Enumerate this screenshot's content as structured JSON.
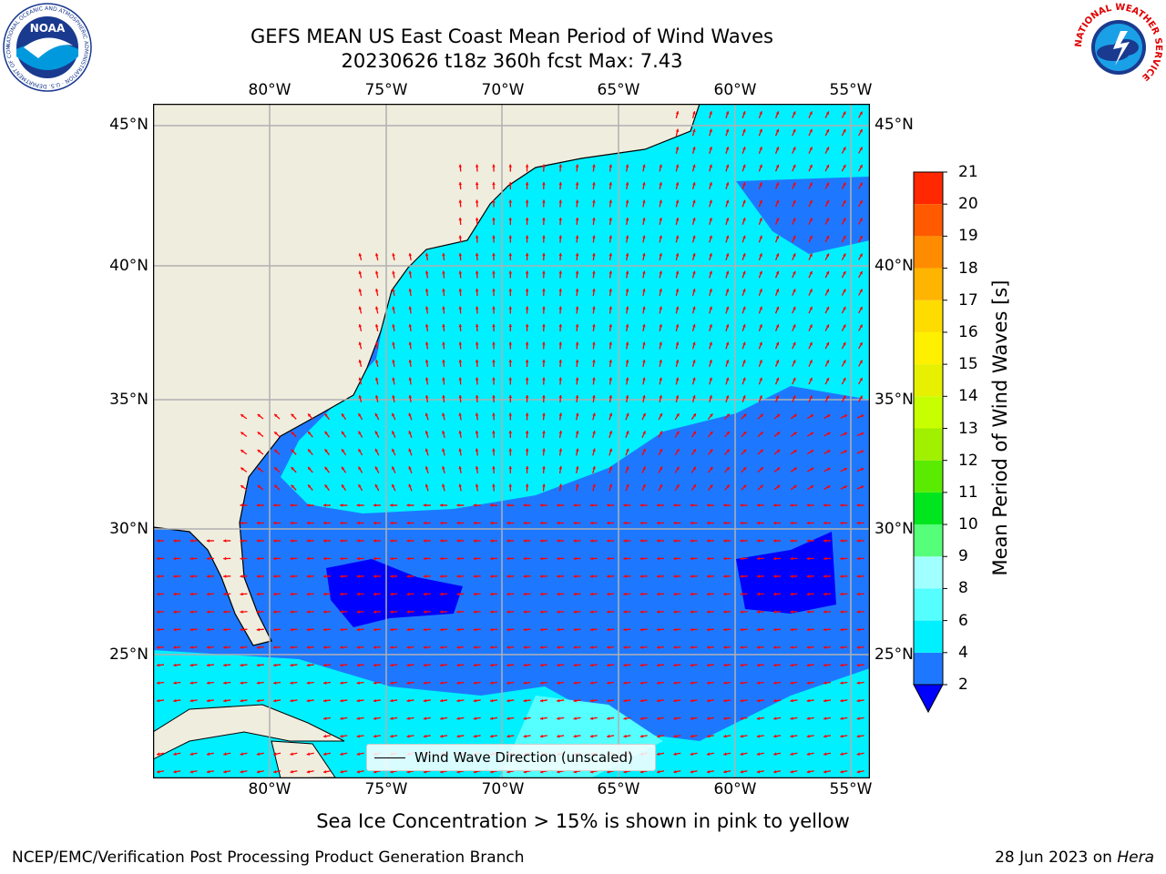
{
  "header": {
    "title_line1": "GEFS MEAN US East Coast Mean Period of Wind Waves",
    "title_line2": "20230626 t18z 360h fcst   Max: 7.43"
  },
  "logos": {
    "noaa_text": "NOAA",
    "noaa_ring_text": "NATIONAL OCEANIC AND ATMOSPHERIC ADMINISTRATION · U.S. DEPARTMENT OF COMMERCE",
    "nws_ring_text": "NATIONAL WEATHER SERVICE"
  },
  "map": {
    "lon_labels": [
      "80°W",
      "75°W",
      "70°W",
      "65°W",
      "60°W",
      "55°W"
    ],
    "lat_labels": [
      "45°N",
      "40°N",
      "35°N",
      "30°N",
      "25°N"
    ],
    "legend_label": "Wind Wave Direction (unscaled)",
    "colors": {
      "land": "#efedde",
      "period_2_4": "#1e78ff",
      "period_4_6": "#00f0ff",
      "period_under_2": "#0000ff",
      "period_6_8": "#55ffff",
      "arrow": "#ff0000",
      "grid": "#b0b0b0",
      "coast": "#000000"
    }
  },
  "colorbar": {
    "label": "Mean Period of Wind Waves [s]",
    "ticks": [
      "2",
      "4",
      "6",
      "8",
      "9",
      "10",
      "11",
      "12",
      "13",
      "14",
      "15",
      "16",
      "17",
      "18",
      "19",
      "20",
      "21"
    ],
    "colors": [
      "#1e78ff",
      "#00f0ff",
      "#55ffff",
      "#a0ffff",
      "#55ff7a",
      "#00e61e",
      "#5aeb00",
      "#a0f000",
      "#c8ff00",
      "#e6f000",
      "#fff000",
      "#ffdc00",
      "#ffb400",
      "#ff8c00",
      "#ff5a00",
      "#ff2800"
    ],
    "under_color": "#0000ff"
  },
  "footer": {
    "note": "Sea Ice Concentration > 15% is shown in pink to yellow",
    "left": "NCEP/EMC/Verification Post Processing Product Generation Branch",
    "right_prefix": "28 Jun 2023 on ",
    "right_host": "Hera"
  }
}
